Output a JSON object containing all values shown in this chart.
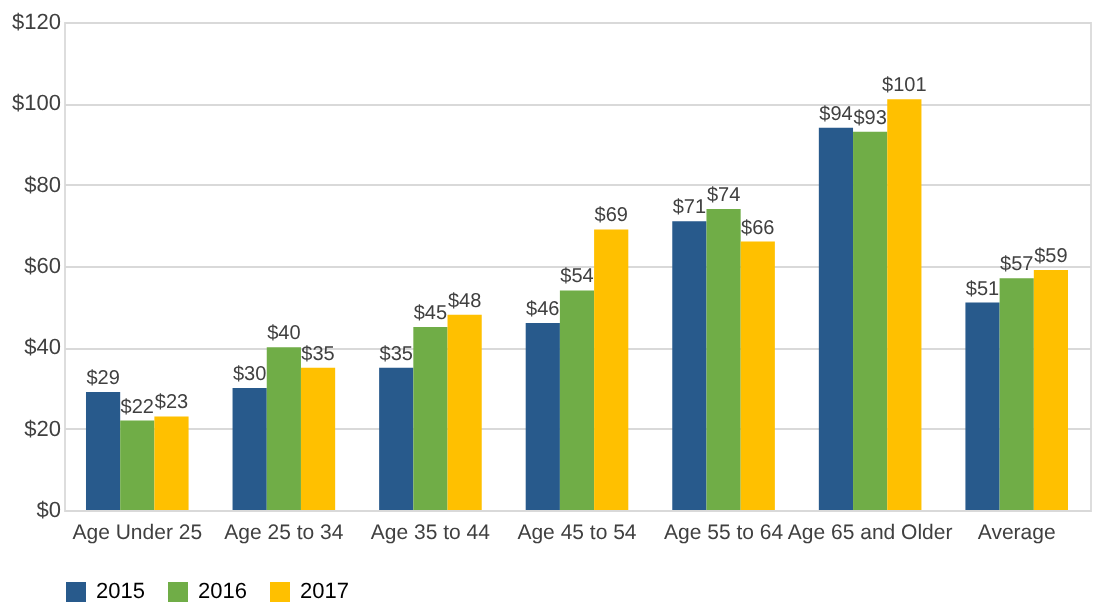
{
  "chart_data": {
    "type": "bar",
    "categories": [
      "Age Under 25",
      "Age 25 to 34",
      "Age 35 to 44",
      "Age 45 to 54",
      "Age 55 to 64",
      "Age 65 and Older",
      "Average"
    ],
    "series": [
      {
        "name": "2015",
        "color": "#285a8c",
        "values": [
          29,
          30,
          35,
          46,
          71,
          94,
          51
        ],
        "value_labels": [
          "$29",
          "$30",
          "$35",
          "$46",
          "$71",
          "$94",
          "$51"
        ]
      },
      {
        "name": "2016",
        "color": "#70ad47",
        "values": [
          22,
          40,
          45,
          54,
          74,
          93,
          57
        ],
        "value_labels": [
          "$22",
          "$40",
          "$45",
          "$54",
          "$74",
          "$93",
          "$57"
        ]
      },
      {
        "name": "2017",
        "color": "#ffc000",
        "values": [
          23,
          35,
          48,
          69,
          66,
          101,
          59
        ],
        "value_labels": [
          "$23",
          "$35",
          "$48",
          "$69",
          "$66",
          "$101",
          "$59"
        ]
      }
    ],
    "ylim": [
      0,
      120
    ],
    "yticks": [
      {
        "value": 0,
        "label": "$0"
      },
      {
        "value": 20,
        "label": "$20"
      },
      {
        "value": 40,
        "label": "$40"
      },
      {
        "value": 60,
        "label": "$60"
      },
      {
        "value": 80,
        "label": "$80"
      },
      {
        "value": 100,
        "label": "$100"
      },
      {
        "value": 120,
        "label": "$120"
      }
    ],
    "grid": "y",
    "legend": "bottom"
  }
}
